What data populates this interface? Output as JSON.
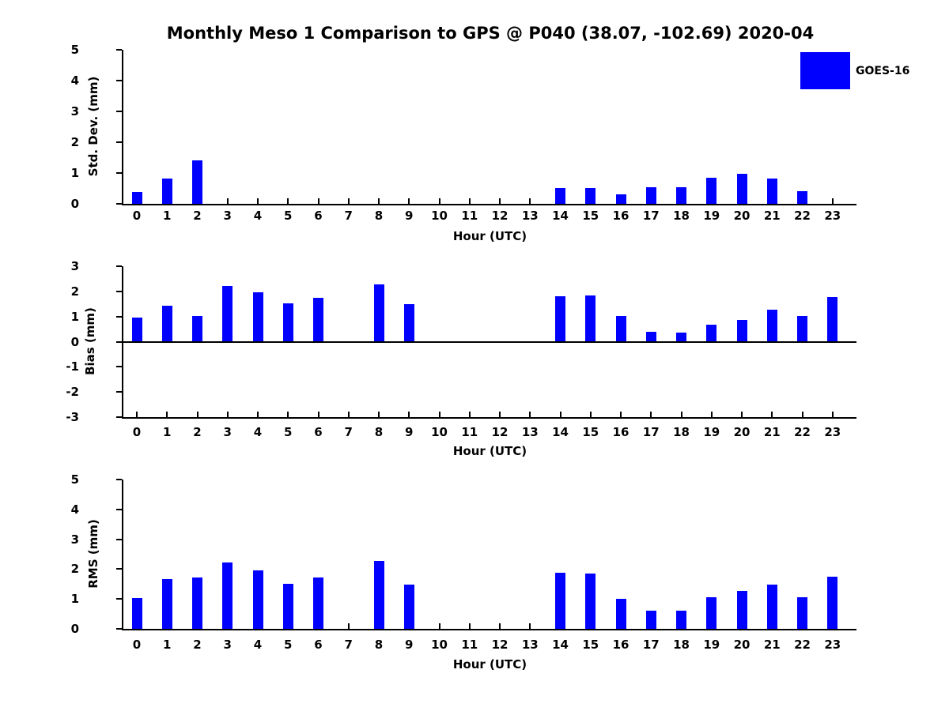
{
  "title": "Monthly Meso 1 Comparison to GPS @ P040 (38.07, -102.69) 2020-04",
  "legend": {
    "label": "GOES-16",
    "color": "#0000FF",
    "position": "upper right"
  },
  "chart_data": [
    {
      "type": "bar",
      "title": "",
      "ylabel": "Std. Dev. (mm)",
      "xlabel": "Hour (UTC)",
      "ylim": [
        0,
        5
      ],
      "yticks": [
        0,
        1,
        2,
        3,
        4,
        5
      ],
      "grid": false,
      "bar_color": "#0000FF",
      "categories": [
        "0",
        "1",
        "2",
        "3",
        "4",
        "5",
        "6",
        "7",
        "8",
        "9",
        "10",
        "11",
        "12",
        "13",
        "14",
        "15",
        "16",
        "17",
        "18",
        "19",
        "20",
        "21",
        "22",
        "23"
      ],
      "series": [
        {
          "name": "GOES-16",
          "values": [
            0.38,
            0.82,
            1.4,
            0,
            0,
            0,
            0,
            0,
            0,
            0,
            0,
            0,
            0,
            0,
            0.52,
            0.52,
            0.3,
            0.55,
            0.53,
            0.85,
            0.97,
            0.83,
            0.4,
            0
          ]
        }
      ]
    },
    {
      "type": "bar",
      "title": "",
      "ylabel": "Bias (mm)",
      "xlabel": "Hour (UTC)",
      "ylim": [
        -3,
        3
      ],
      "yticks": [
        -3,
        -2,
        -1,
        0,
        1,
        2,
        3
      ],
      "grid": false,
      "bar_color": "#0000FF",
      "categories": [
        "0",
        "1",
        "2",
        "3",
        "4",
        "5",
        "6",
        "7",
        "8",
        "9",
        "10",
        "11",
        "12",
        "13",
        "14",
        "15",
        "16",
        "17",
        "18",
        "19",
        "20",
        "21",
        "22",
        "23"
      ],
      "series": [
        {
          "name": "GOES-16",
          "values": [
            0.97,
            1.43,
            1.02,
            2.23,
            1.97,
            1.52,
            1.73,
            0,
            2.28,
            1.48,
            0,
            0,
            0,
            0,
            1.82,
            1.84,
            1.01,
            0.4,
            0.35,
            0.69,
            0.87,
            1.28,
            1.01,
            1.76
          ]
        }
      ]
    },
    {
      "type": "bar",
      "title": "",
      "ylabel": "RMS (mm)",
      "xlabel": "Hour (UTC)",
      "ylim": [
        0,
        5
      ],
      "yticks": [
        0,
        1,
        2,
        3,
        4,
        5
      ],
      "grid": false,
      "bar_color": "#0000FF",
      "categories": [
        "0",
        "1",
        "2",
        "3",
        "4",
        "5",
        "6",
        "7",
        "8",
        "9",
        "10",
        "11",
        "12",
        "13",
        "14",
        "15",
        "16",
        "17",
        "18",
        "19",
        "20",
        "21",
        "22",
        "23"
      ],
      "series": [
        {
          "name": "GOES-16",
          "values": [
            1.03,
            1.66,
            1.71,
            2.23,
            1.97,
            1.52,
            1.73,
            0,
            2.28,
            1.47,
            0,
            0,
            0,
            0,
            1.89,
            1.85,
            1.01,
            0.62,
            0.62,
            1.07,
            1.28,
            1.49,
            1.05,
            1.75
          ]
        }
      ]
    }
  ]
}
